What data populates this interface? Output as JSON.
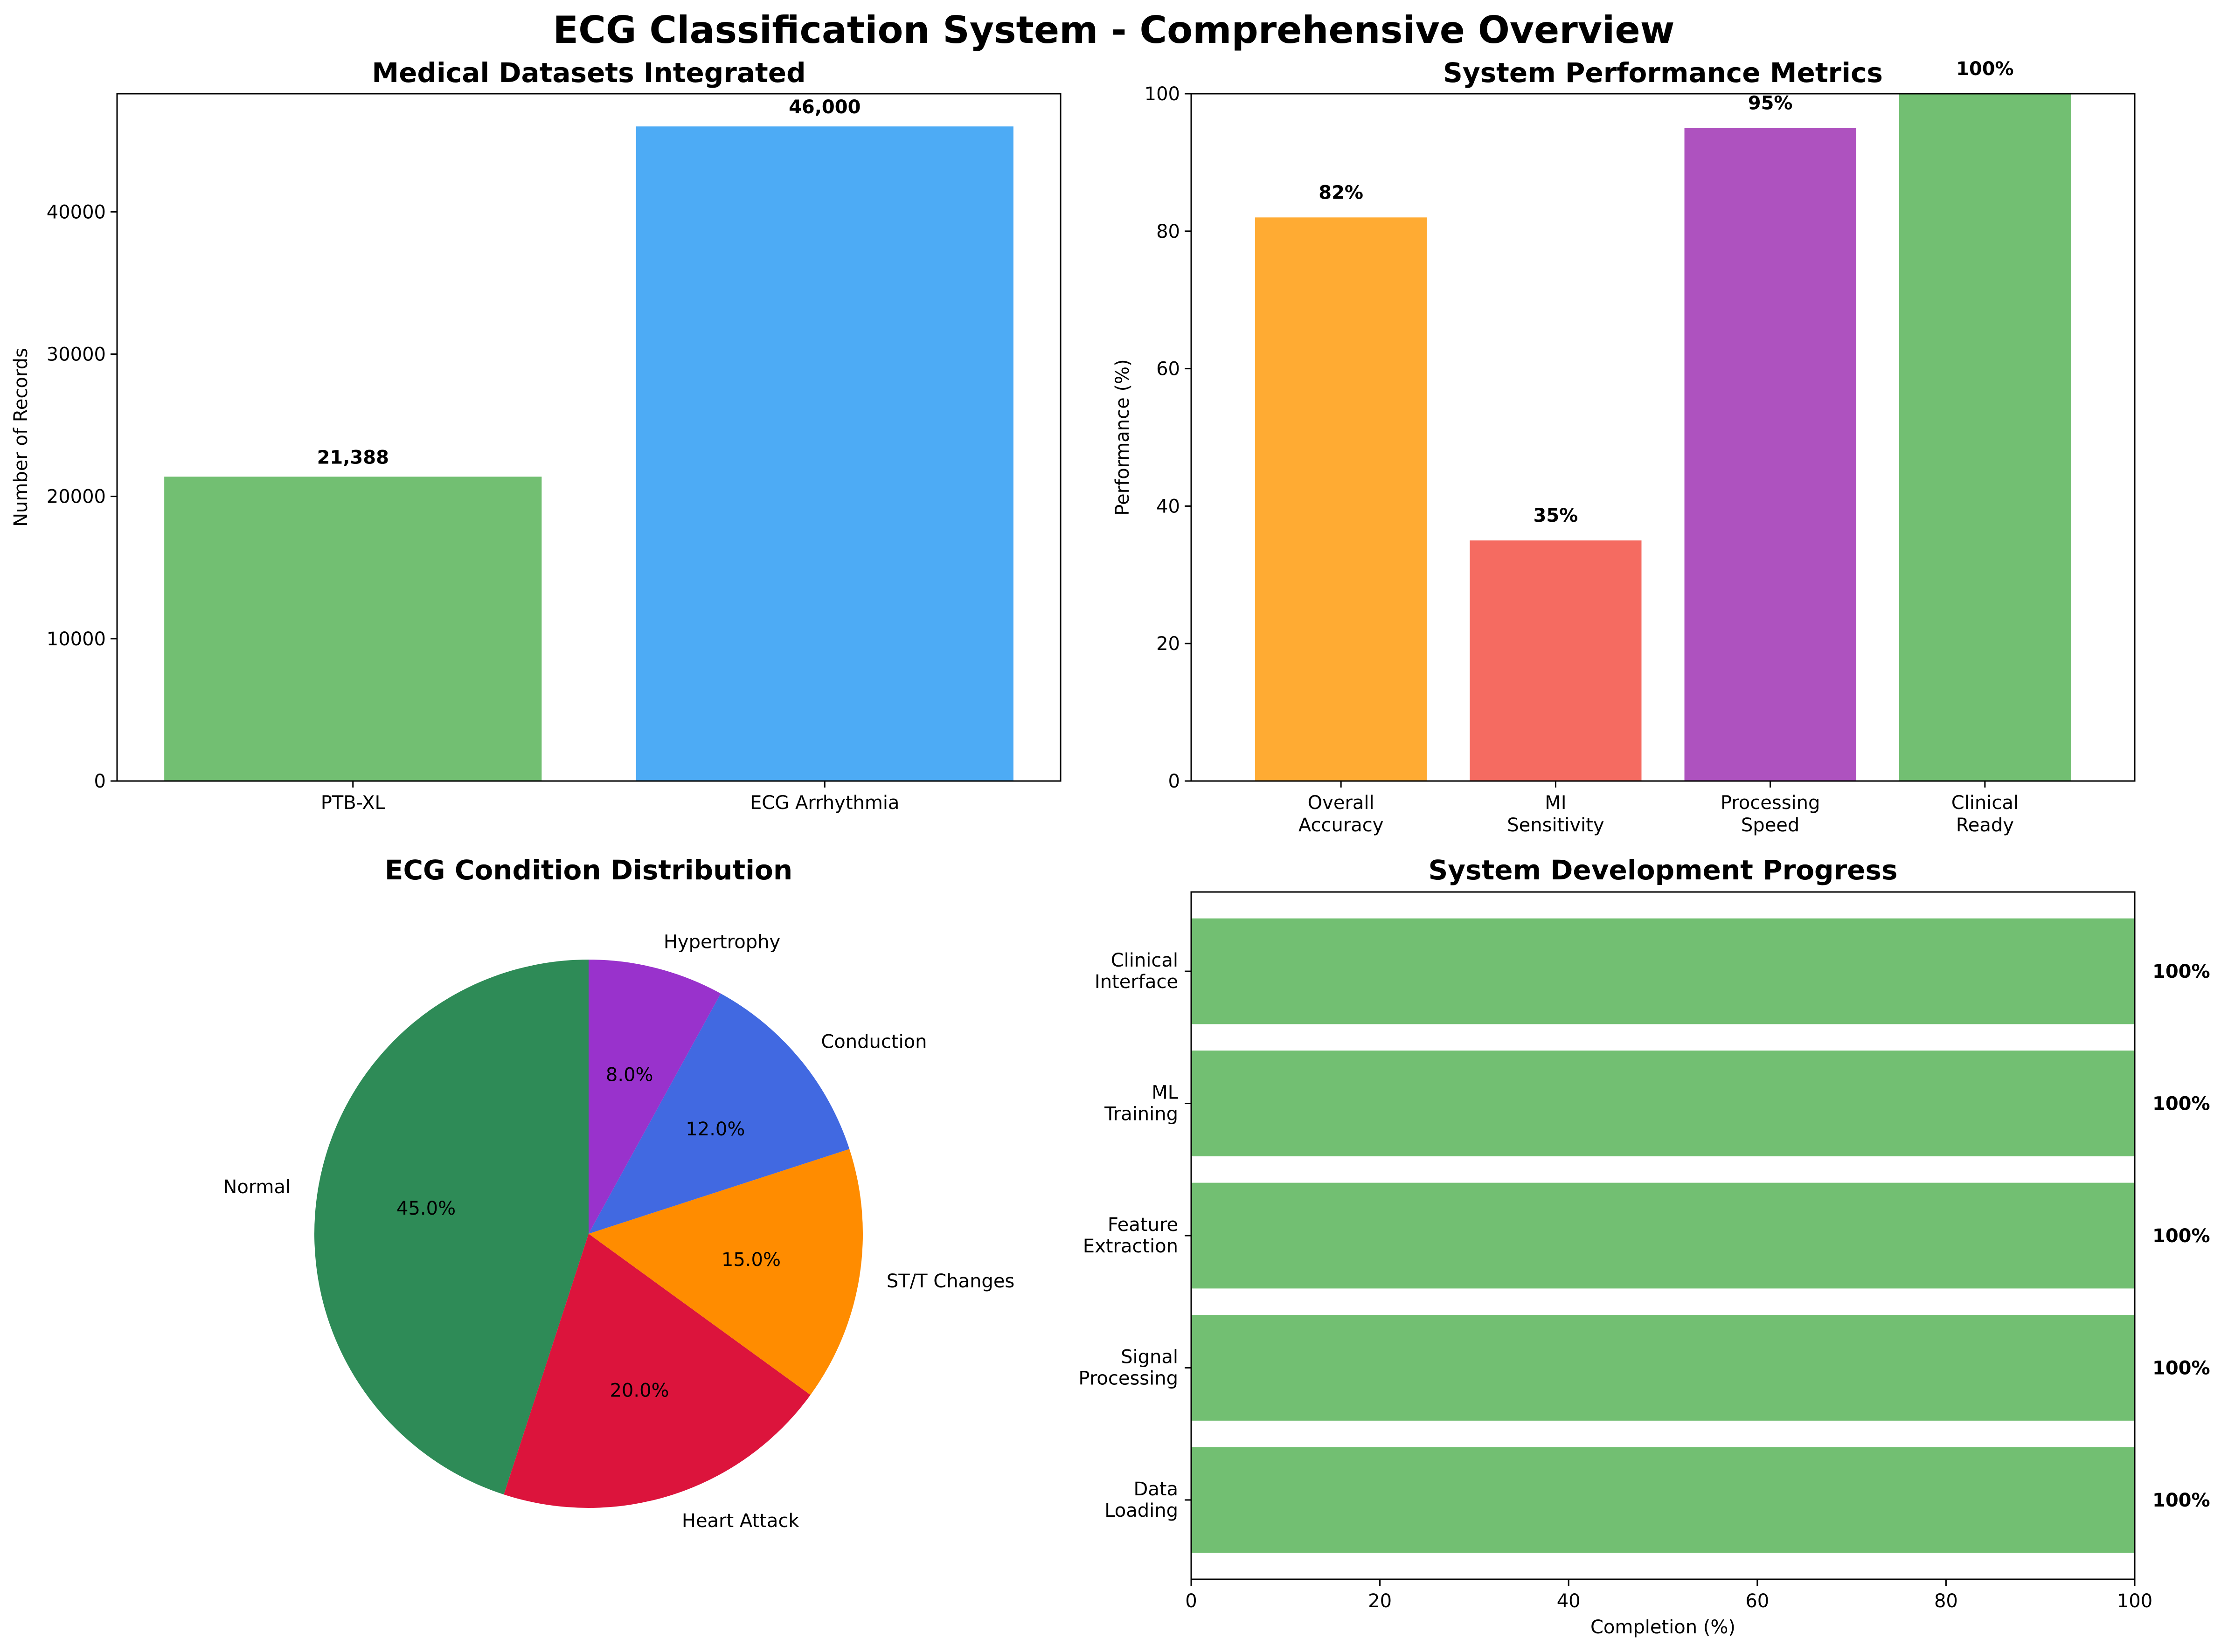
{
  "title": "ECG Classification System - Comprehensive Overview",
  "chart_data": [
    {
      "id": "datasets",
      "type": "bar",
      "title": "Medical Datasets Integrated",
      "xlabel": "",
      "ylabel": "Number of Records",
      "categories": [
        "PTB-XL",
        "ECG Arrhythmia"
      ],
      "values": [
        21388,
        46000
      ],
      "value_labels": [
        "21,388",
        "46,000"
      ],
      "colors": [
        "#72BF72",
        "#4DABF5"
      ],
      "ylim": [
        0,
        48300
      ],
      "yticks": [
        0,
        10000,
        20000,
        30000,
        40000
      ],
      "grid": false
    },
    {
      "id": "performance",
      "type": "bar",
      "title": "System Performance Metrics",
      "xlabel": "",
      "ylabel": "Performance (%)",
      "categories": [
        [
          "Overall",
          "Accuracy"
        ],
        [
          "MI",
          "Sensitivity"
        ],
        [
          "Processing",
          "Speed"
        ],
        [
          "Clinical",
          "Ready"
        ]
      ],
      "values": [
        82,
        35,
        95,
        100
      ],
      "value_labels": [
        "82%",
        "35%",
        "95%",
        "100%"
      ],
      "colors": [
        "#FFAB33",
        "#F56B61",
        "#AE52BF",
        "#72BF72"
      ],
      "ylim": [
        0,
        100
      ],
      "yticks": [
        0,
        20,
        40,
        60,
        80,
        100
      ],
      "grid": false
    },
    {
      "id": "conditions",
      "type": "pie",
      "title": "ECG Condition Distribution",
      "labels": [
        "Normal",
        "Heart Attack",
        "ST/T Changes",
        "Conduction",
        "Hypertrophy"
      ],
      "values": [
        45.0,
        20.0,
        15.0,
        12.0,
        8.0
      ],
      "pct_labels": [
        "45.0%",
        "20.0%",
        "15.0%",
        "12.0%",
        "8.0%"
      ],
      "colors": [
        "#2E8B57",
        "#DC143C",
        "#FF8C00",
        "#4169E1",
        "#9932CC"
      ],
      "start_angle_deg": 90,
      "direction": "counterclockwise"
    },
    {
      "id": "progress",
      "type": "bar",
      "orientation": "horizontal",
      "title": "System Development Progress",
      "xlabel": "Completion (%)",
      "ylabel": "",
      "categories": [
        [
          "Data",
          "Loading"
        ],
        [
          "Signal",
          "Processing"
        ],
        [
          "Feature",
          "Extraction"
        ],
        [
          "ML",
          "Training"
        ],
        [
          "Clinical",
          "Interface"
        ]
      ],
      "values": [
        100,
        100,
        100,
        100,
        100
      ],
      "value_labels": [
        "100%",
        "100%",
        "100%",
        "100%",
        "100%"
      ],
      "colors": [
        "#72BF72",
        "#72BF72",
        "#72BF72",
        "#72BF72",
        "#72BF72"
      ],
      "xlim": [
        0,
        100
      ],
      "xticks": [
        0,
        20,
        40,
        60,
        80,
        100
      ],
      "grid": false
    }
  ]
}
